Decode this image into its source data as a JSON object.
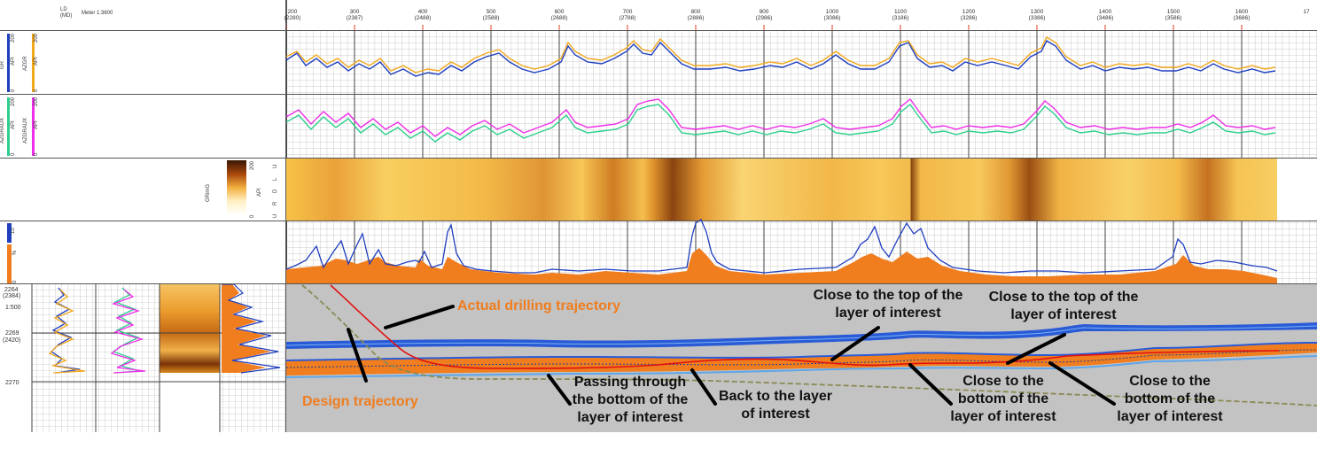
{
  "header": {
    "depth_ref_label": "LD\n(MD)",
    "scale_label": "Meter 1:3600",
    "ticks": [
      {
        "ld": "200",
        "md": "(2280)"
      },
      {
        "ld": "300",
        "md": "(2387)"
      },
      {
        "ld": "400",
        "md": "(2488)"
      },
      {
        "ld": "500",
        "md": "(2588)"
      },
      {
        "ld": "600",
        "md": "(2688)"
      },
      {
        "ld": "700",
        "md": "(2788)"
      },
      {
        "ld": "800",
        "md": "(2886)"
      },
      {
        "ld": "900",
        "md": "(2986)"
      },
      {
        "ld": "1000",
        "md": "(3086)"
      },
      {
        "ld": "1100",
        "md": "(3186)"
      },
      {
        "ld": "1200",
        "md": "(3286)"
      },
      {
        "ld": "1300",
        "md": "(3386)"
      },
      {
        "ld": "1400",
        "md": "(3486)"
      },
      {
        "ld": "1500",
        "md": "(3586)"
      },
      {
        "ld": "1600",
        "md": "(3686)"
      },
      {
        "ld": "17",
        "md": ""
      }
    ]
  },
  "tracks": {
    "track1": {
      "curve_a": "GR",
      "curve_b": "AZGR",
      "unit": "API",
      "min": "0",
      "max": "200",
      "color_a": "#1f3fbf",
      "color_b": "#f2a71b"
    },
    "track2": {
      "curve_a": "AZGRAUX",
      "curve_b": "AZGRAUX",
      "unit": "API",
      "min": "0",
      "max": "200",
      "color_a": "#2ecf8e",
      "color_b": "#ee2ee8"
    },
    "track3": {
      "curve": "GRimG",
      "unit": "API",
      "min": "0",
      "max": "200",
      "sectors": [
        "U",
        "L",
        "D",
        "R",
        "U"
      ]
    },
    "track4": {
      "curve": "%",
      "min": "0",
      "max": "10"
    }
  },
  "depth_panel": {
    "labels": [
      "2264",
      "(2384)",
      "1:500",
      "2269",
      "(2420)",
      "2270"
    ]
  },
  "annotations": {
    "actual": "Actual drilling trajectory",
    "design": "Design trajectory",
    "top1": "Close to the top of the\nlayer of interest",
    "top2": "Close to the top of the\nlayer of interest",
    "pass": "Passing through\nthe bottom of the\nlayer of interest",
    "back": "Back to the layer\nof interest",
    "bot1": "Close to the\nbottom of the\nlayer of interest",
    "bot2": "Close to the\nbottom of the\nlayer of interest"
  },
  "colors": {
    "accent_orange": "#f07d1e",
    "layer_blue": "#2a5bd7",
    "actual_red": "#e01010",
    "design_olive": "#8b8a55",
    "section_bg": "#c3c3c3"
  }
}
